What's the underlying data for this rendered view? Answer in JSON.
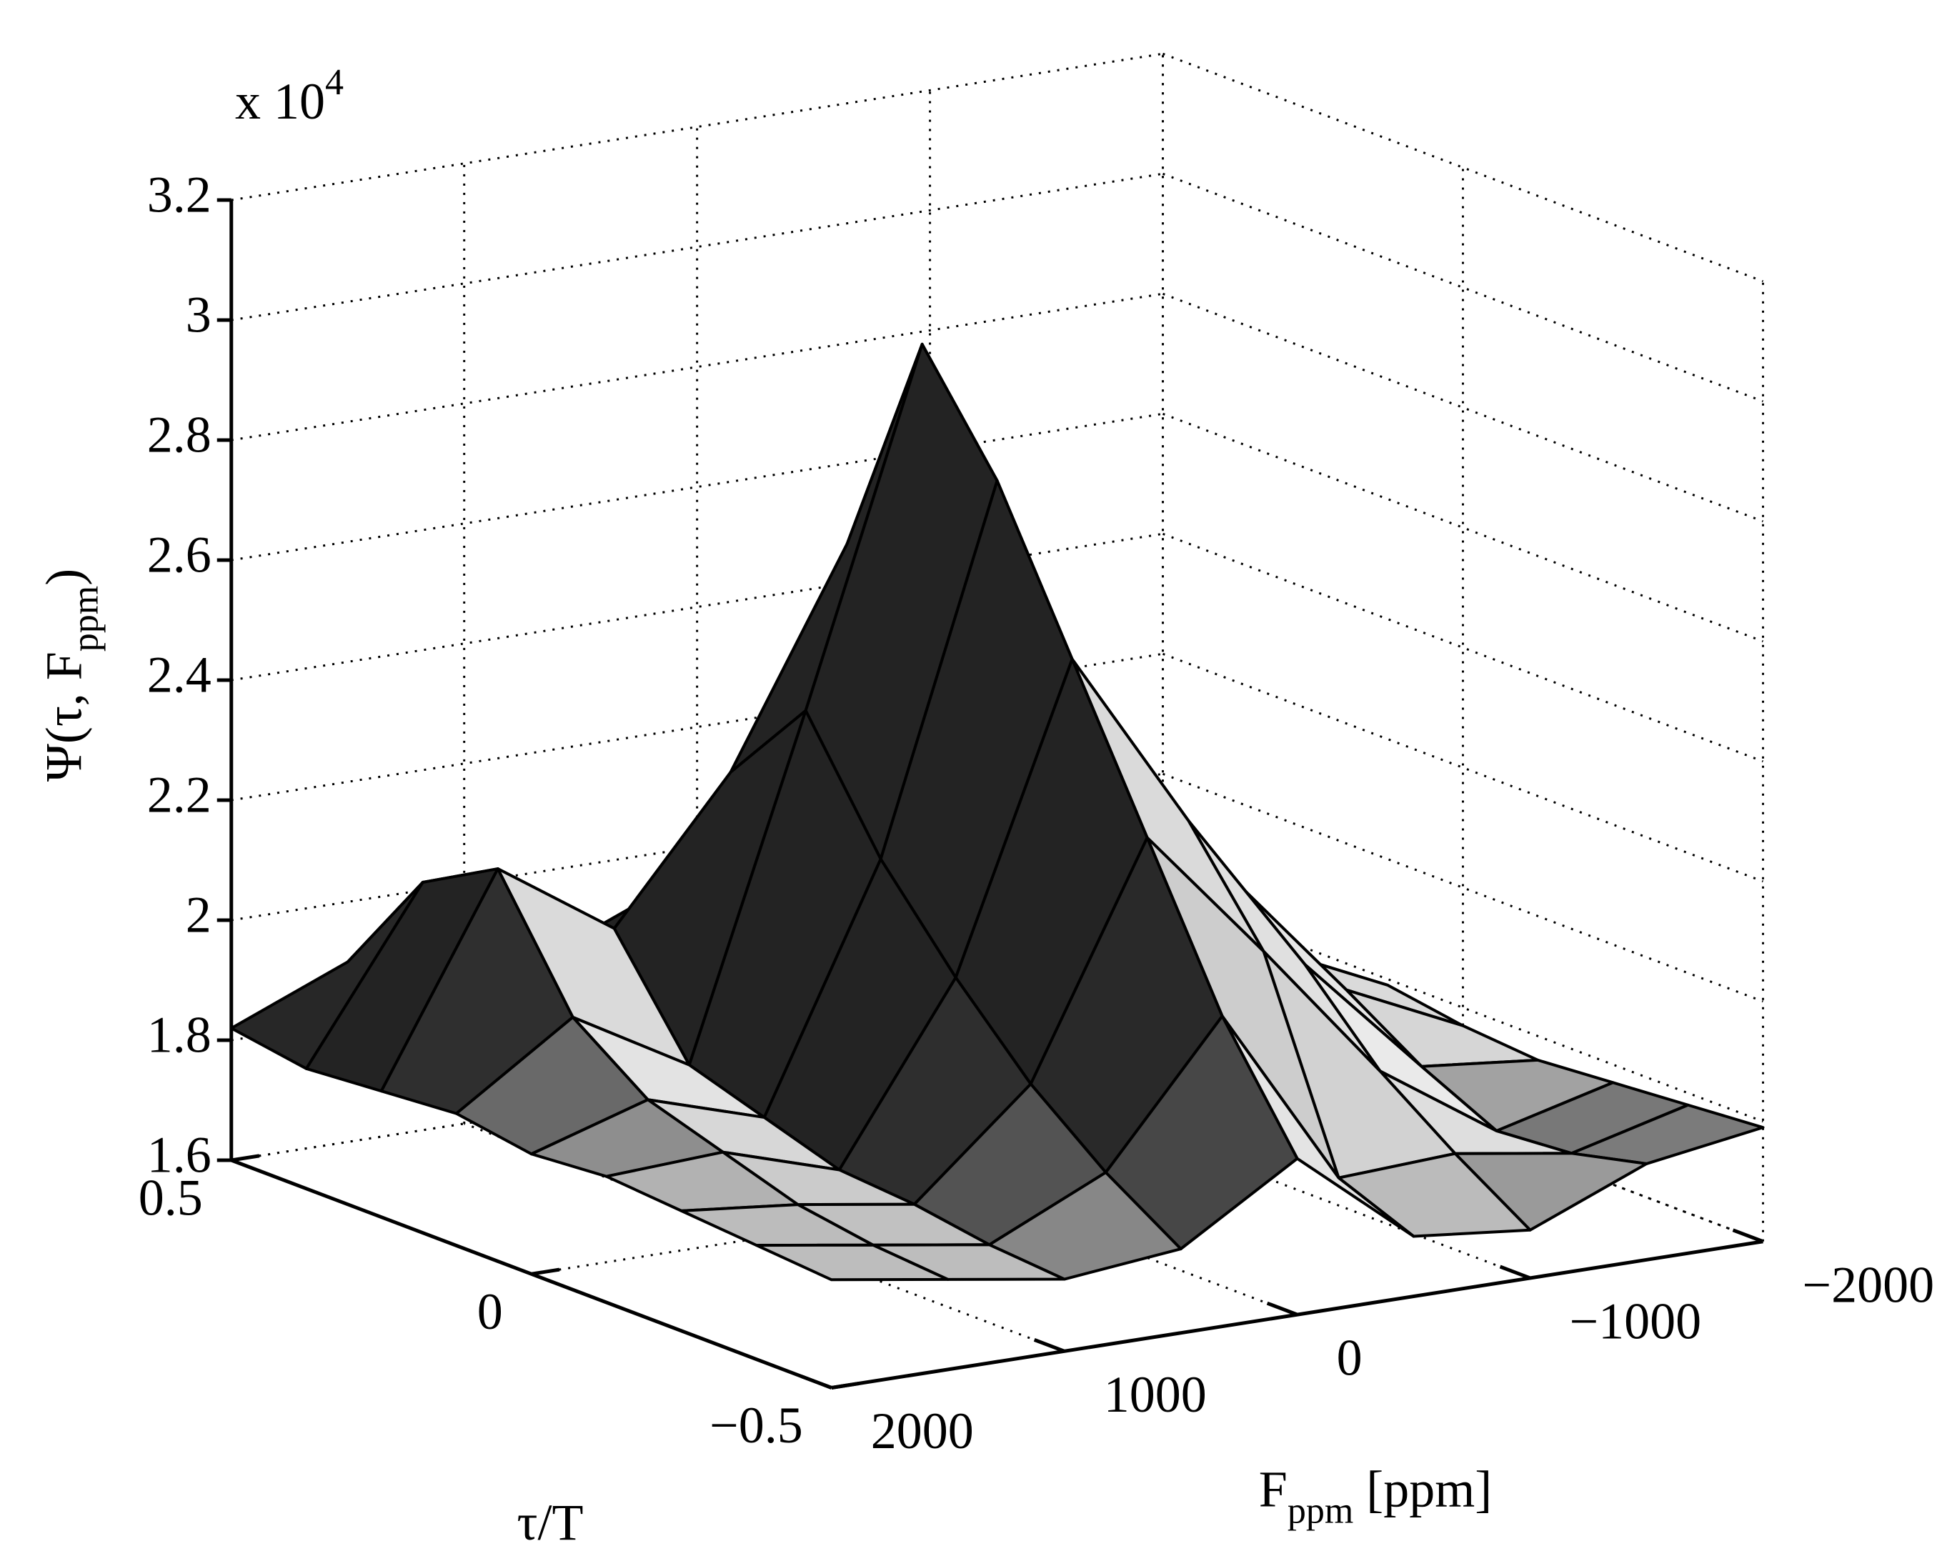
{
  "chart_data": {
    "type": "surface",
    "z_multiplier": [
      "x 10",
      "4"
    ],
    "zlabel": [
      "Ψ(τ, F",
      "ppm",
      ")"
    ],
    "xlabel": [
      "F",
      "ppm",
      " [ppm]"
    ],
    "ylabel": "τ/T",
    "x": [
      2000,
      1500,
      1000,
      500,
      0,
      -500,
      -1000,
      -1500,
      -2000
    ],
    "y": [
      -0.5,
      -0.375,
      -0.25,
      -0.125,
      0,
      0.125,
      0.25,
      0.375,
      0.5
    ],
    "z": [
      [
        17800,
        17500,
        17200,
        17400,
        18600,
        17000,
        16800,
        17600,
        17900
      ],
      [
        17900,
        17600,
        17300,
        18200,
        20500,
        17500,
        17600,
        17300,
        17800
      ],
      [
        18000,
        17800,
        17500,
        19200,
        23000,
        20800,
        18500,
        17200,
        17700
      ],
      [
        18100,
        18200,
        17600,
        20500,
        25500,
        22500,
        19800,
        17800,
        17600
      ],
      [
        18000,
        18600,
        18000,
        22000,
        28000,
        21500,
        20800,
        18600,
        17700
      ],
      [
        18200,
        19500,
        18400,
        24000,
        29800,
        21000,
        20200,
        18800,
        17900
      ],
      [
        18100,
        21500,
        20200,
        22500,
        26000,
        20400,
        19400,
        18400,
        17800
      ],
      [
        18000,
        20800,
        19200,
        20000,
        21500,
        19600,
        19000,
        18200,
        17800
      ],
      [
        18200,
        19000,
        18400,
        18600,
        19000,
        18800,
        18400,
        18000,
        17900
      ]
    ],
    "xlim": [
      -2000,
      2000
    ],
    "ylim": [
      -0.5,
      0.5
    ],
    "zlim": [
      16000,
      32000
    ],
    "xticks": [
      {
        "value": 2000,
        "label": "2000"
      },
      1000,
      0,
      {
        "value": -1000,
        "label": "−1000"
      },
      {
        "value": -2000,
        "label": "−2000"
      }
    ],
    "yticks": [
      {
        "value": 0.5,
        "label": "0.5"
      },
      0,
      {
        "value": -0.5,
        "label": "−0.5"
      }
    ],
    "zticks": [
      {
        "value": 16000,
        "label": "1.6"
      },
      {
        "value": 18000,
        "label": "1.8"
      },
      {
        "value": 20000,
        "label": "2"
      },
      {
        "value": 22000,
        "label": "2.2"
      },
      {
        "value": 24000,
        "label": "2.4"
      },
      {
        "value": 26000,
        "label": "2.6"
      },
      {
        "value": 28000,
        "label": "2.8"
      },
      {
        "value": 30000,
        "label": "3"
      },
      {
        "value": 32000,
        "label": "3.2"
      }
    ],
    "grid": true,
    "colormap": "gray"
  }
}
